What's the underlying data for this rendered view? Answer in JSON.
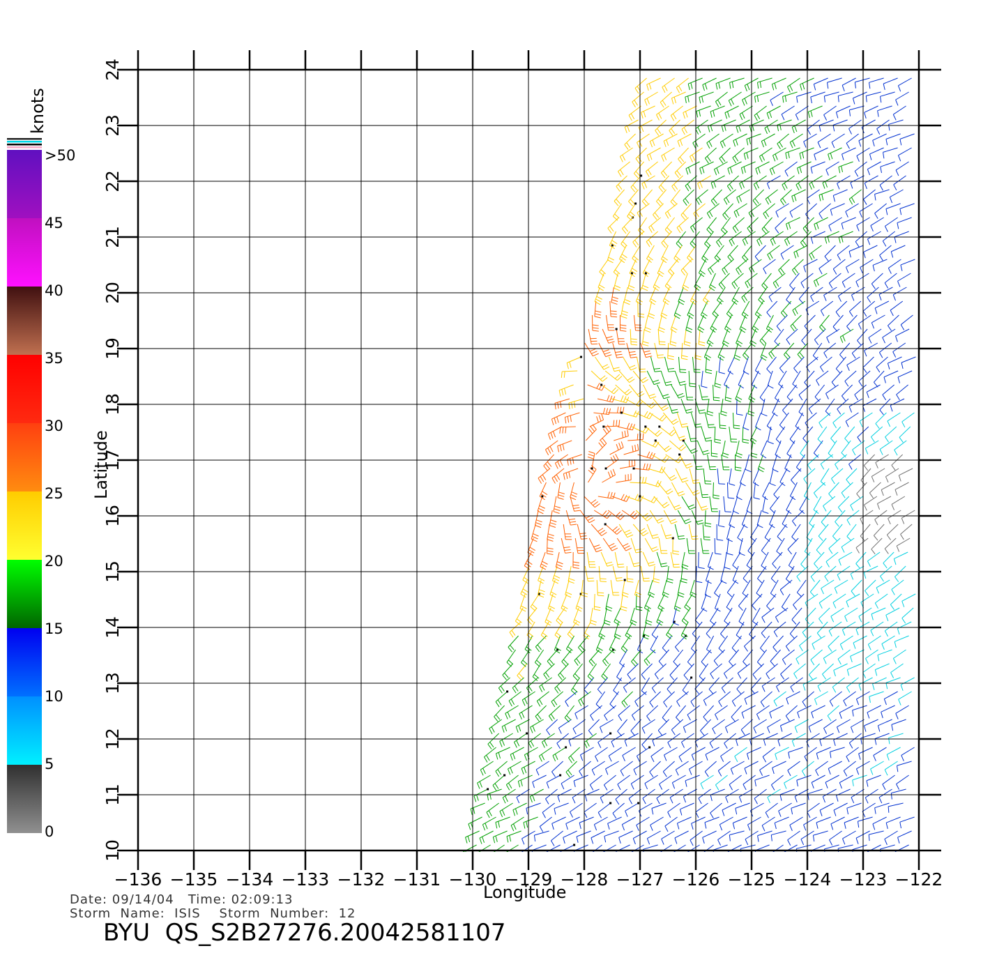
{
  "map": {
    "xlabel": "Longitude",
    "ylabel": "Latitude",
    "lon_ticks": [
      "−136",
      "−135",
      "−134",
      "−133",
      "−132",
      "−131",
      "−130",
      "−129",
      "−128",
      "−127",
      "−126",
      "−125",
      "−124",
      "−123",
      "−122"
    ],
    "lat_ticks": [
      "10",
      "11",
      "12",
      "13",
      "14",
      "15",
      "16",
      "17",
      "18",
      "19",
      "20",
      "21",
      "22",
      "23",
      "24"
    ],
    "lon_range": [
      -136,
      -122
    ],
    "lat_range": [
      10,
      24
    ],
    "swath_edge_west": [
      [
        -130.0,
        10.0
      ],
      [
        -129.2,
        14.0
      ],
      [
        -128.9,
        16.0
      ],
      [
        -128.2,
        18.5
      ],
      [
        -127.8,
        20.0
      ],
      [
        -127.5,
        21.0
      ],
      [
        -127.2,
        22.5
      ],
      [
        -126.9,
        24.0
      ]
    ],
    "swath_edge_east": [
      [
        -122.0,
        10.0
      ],
      [
        -122.0,
        24.0
      ]
    ],
    "gray_zone": {
      "lon": [
        -123.0,
        -122.0
      ],
      "lat": [
        15.5,
        17.2
      ]
    }
  },
  "colorbar": {
    "unit": "knots",
    "labels": [
      ">50",
      "45",
      "40",
      "35",
      "30",
      "25",
      "20",
      "15",
      "10",
      "5",
      "0"
    ],
    "bands": [
      {
        "range": [
          0,
          5
        ],
        "from": "#909090",
        "to": "#303030"
      },
      {
        "range": [
          5,
          10
        ],
        "from": "#00f0ff",
        "to": "#0090ff"
      },
      {
        "range": [
          10,
          15
        ],
        "from": "#0070ff",
        "to": "#0000f0"
      },
      {
        "range": [
          15,
          20
        ],
        "from": "#006400",
        "to": "#00ff00"
      },
      {
        "range": [
          20,
          25
        ],
        "from": "#ffff30",
        "to": "#ffcc00"
      },
      {
        "range": [
          25,
          30
        ],
        "from": "#ff8c10",
        "to": "#ff4010"
      },
      {
        "range": [
          30,
          35
        ],
        "from": "#ff2a10",
        "to": "#ff0000"
      },
      {
        "range": [
          35,
          40
        ],
        "from": "#c07050",
        "to": "#401010"
      },
      {
        "range": [
          40,
          45
        ],
        "from": "#ff10ff",
        "to": "#c010c0"
      },
      {
        "range": [
          45,
          50
        ],
        "from": "#a010c0",
        "to": "#6010c0"
      }
    ]
  },
  "info": {
    "line1": "Date: 09/14/04   Time: 02:09:13",
    "line2": "Storm  Name:  ISIS    Storm  Number:  12",
    "title": "BYU  QS_S2B27276.20042581107"
  },
  "storm_center": {
    "lon": -128.0,
    "lat": 16.6
  },
  "colors": {
    "calm": "#707070",
    "light": "#00d0e0",
    "moderate": "#0030d0",
    "fresh": "#00a000",
    "strong": "#ffcc00",
    "gale": "#ff6000"
  }
}
